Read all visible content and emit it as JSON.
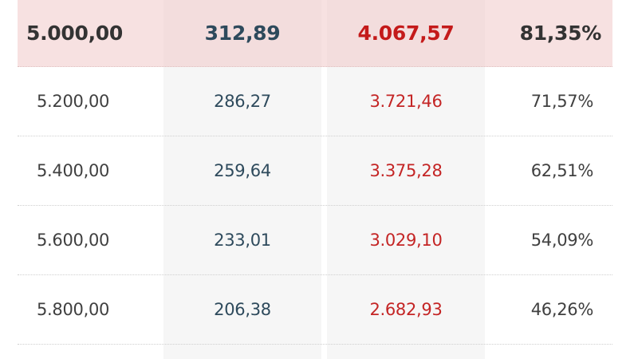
{
  "colors": {
    "highlight_row": "#f5dfdf",
    "column_shade": "#f6f6f6",
    "col2_text": "#2e4a5c",
    "col3_text": "#c42525"
  },
  "rows": [
    {
      "c1": "5.000,00",
      "c2": "312,89",
      "c3": "4.067,57",
      "c4": "81,35%",
      "highlighted": true
    },
    {
      "c1": "5.200,00",
      "c2": "286,27",
      "c3": "3.721,46",
      "c4": "71,57%"
    },
    {
      "c1": "5.400,00",
      "c2": "259,64",
      "c3": "3.375,28",
      "c4": "62,51%"
    },
    {
      "c1": "5.600,00",
      "c2": "233,01",
      "c3": "3.029,10",
      "c4": "54,09%"
    },
    {
      "c1": "5.800,00",
      "c2": "206,38",
      "c3": "2.682,93",
      "c4": "46,26%"
    }
  ]
}
